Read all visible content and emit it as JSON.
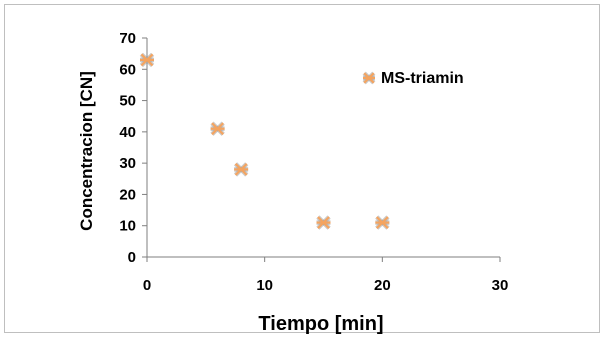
{
  "chart_data": {
    "type": "scatter",
    "title": "",
    "xlabel": "Tiempo [min]",
    "ylabel": "Concentracion [CN]",
    "xlim": [
      0,
      30
    ],
    "ylim": [
      0,
      70
    ],
    "xticks": [
      "0",
      "10",
      "20",
      "30"
    ],
    "yticks": [
      "0",
      "10",
      "20",
      "30",
      "40",
      "50",
      "60",
      "70"
    ],
    "grid": false,
    "legend_position": "top-right",
    "series": [
      {
        "name": "MS-triamin",
        "color": "#f4a460",
        "marker": "asterisk",
        "points": [
          {
            "x": 0,
            "y": 63
          },
          {
            "x": 6,
            "y": 41
          },
          {
            "x": 8,
            "y": 28
          },
          {
            "x": 15,
            "y": 11
          },
          {
            "x": 20,
            "y": 11
          }
        ]
      }
    ]
  }
}
